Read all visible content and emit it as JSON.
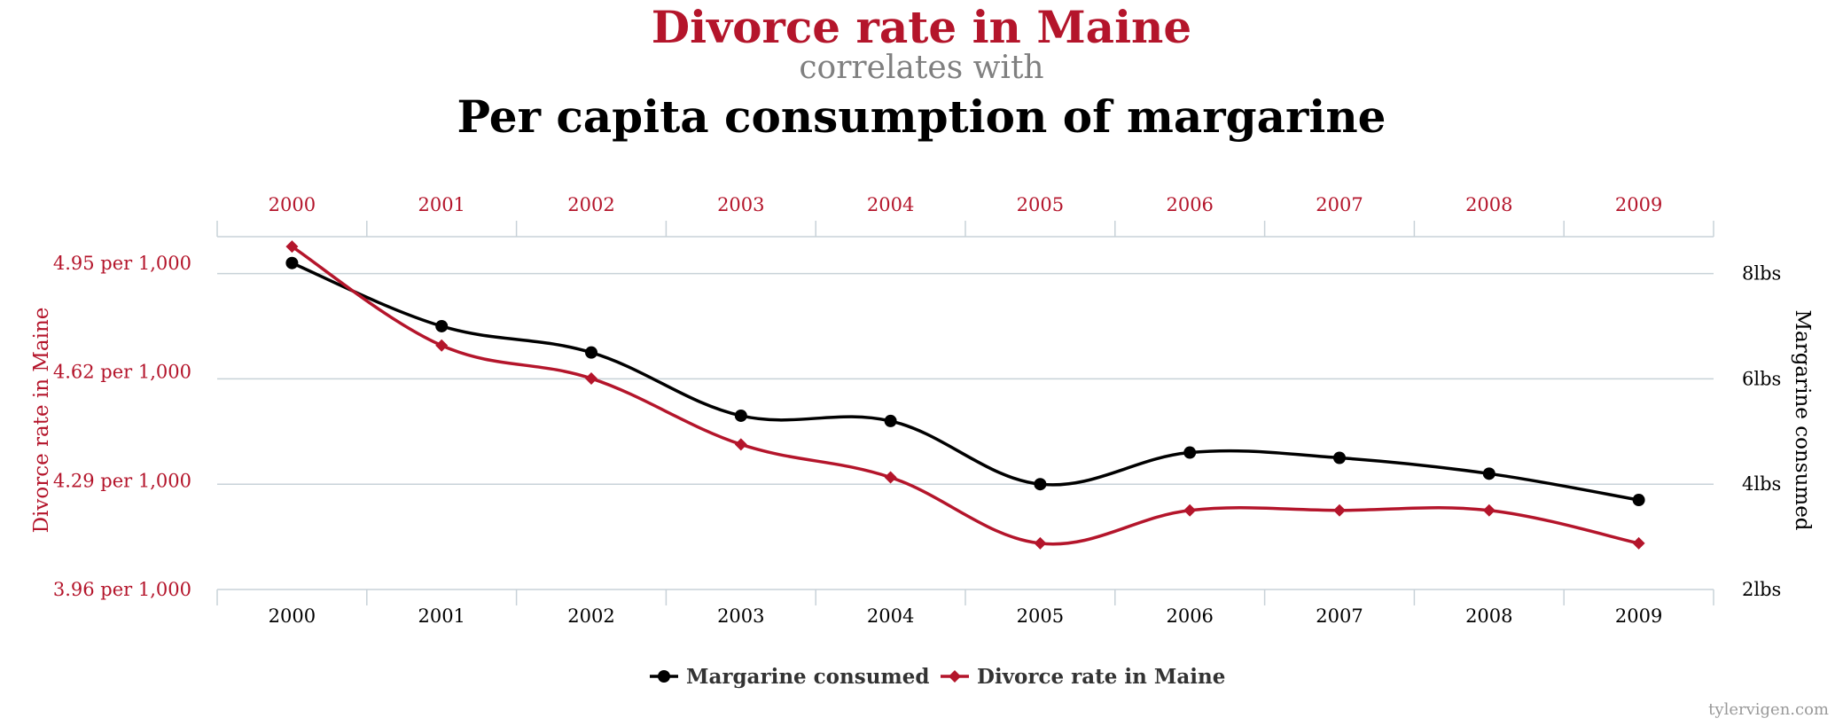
{
  "header": {
    "title": "Divorce rate in Maine",
    "subtitle": "correlates with",
    "title2": "Per capita consumption of margarine"
  },
  "footer": {
    "credit": "tylervigen.com"
  },
  "colors": {
    "divorce": "#b4152b",
    "margarine": "#000000",
    "grid": "#c8d2d8",
    "axis_gray": "#808080"
  },
  "chart_data": {
    "type": "line",
    "x": [
      2000,
      2001,
      2002,
      2003,
      2004,
      2005,
      2006,
      2007,
      2008,
      2009
    ],
    "x_tick_labels": [
      "2000",
      "2001",
      "2002",
      "2003",
      "2004",
      "2005",
      "2006",
      "2007",
      "2008",
      "2009"
    ],
    "left_axis": {
      "label": "Divorce rate in Maine",
      "range": [
        3.96,
        5.03
      ],
      "ticks": [
        3.96,
        4.29,
        4.62,
        4.95
      ],
      "tick_labels": [
        "3.96 per 1,000",
        "4.29 per 1,000",
        "4.62 per 1,000",
        "4.95 per 1,000"
      ]
    },
    "right_axis": {
      "label": "Margarine consumed",
      "range": [
        2,
        8.7
      ],
      "ticks": [
        2,
        4,
        6,
        8
      ],
      "tick_labels": [
        "2lbs",
        "4lbs",
        "6lbs",
        "8lbs"
      ]
    },
    "grid": true,
    "legend_position": "bottom-center",
    "series": [
      {
        "name": "Margarine consumed",
        "axis": "right",
        "marker": "circle",
        "values": [
          8.2,
          7.0,
          6.5,
          5.3,
          5.2,
          4.0,
          4.6,
          4.5,
          4.2,
          3.7
        ]
      },
      {
        "name": "Divorce rate in Maine",
        "axis": "left",
        "marker": "diamond",
        "values": [
          5.0,
          4.7,
          4.6,
          4.4,
          4.3,
          4.1,
          4.2,
          4.2,
          4.2,
          4.1
        ]
      }
    ]
  }
}
